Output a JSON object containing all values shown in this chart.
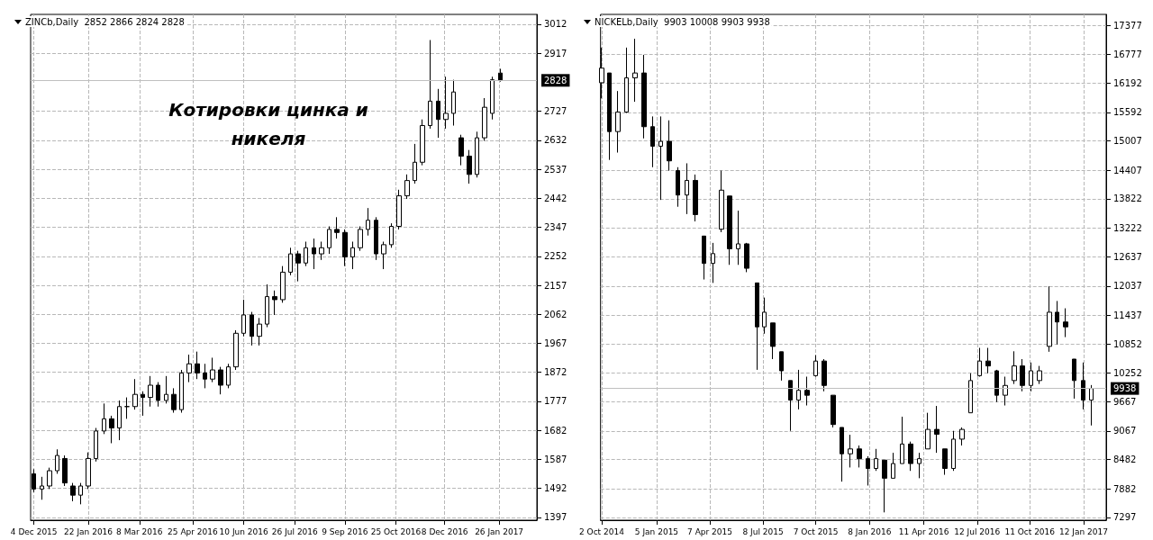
{
  "chart_data": [
    {
      "type": "candlestick",
      "title": "ZINCb,Daily  2852 2866 2824 2828",
      "annotations": [
        "Котировки цинка и никеля"
      ],
      "color": "#000000",
      "grid": true,
      "x": [
        "2015-12-04",
        "2015-12-11",
        "2015-12-18",
        "2015-12-25",
        "2016-01-01",
        "2016-01-08",
        "2016-01-15",
        "2016-01-22",
        "2016-01-29",
        "2016-02-05",
        "2016-02-12",
        "2016-02-19",
        "2016-02-26",
        "2016-03-04",
        "2016-03-11",
        "2016-03-18",
        "2016-03-25",
        "2016-04-01",
        "2016-04-08",
        "2016-04-15",
        "2016-04-22",
        "2016-04-29",
        "2016-05-06",
        "2016-05-13",
        "2016-05-20",
        "2016-05-27",
        "2016-06-03",
        "2016-06-10",
        "2016-06-17",
        "2016-06-24",
        "2016-07-01",
        "2016-07-08",
        "2016-07-15",
        "2016-07-22",
        "2016-07-29",
        "2016-08-05",
        "2016-08-12",
        "2016-08-19",
        "2016-08-26",
        "2016-09-02",
        "2016-09-09",
        "2016-09-16",
        "2016-09-23",
        "2016-09-30",
        "2016-10-07",
        "2016-10-14",
        "2016-10-21",
        "2016-10-28",
        "2016-11-04",
        "2016-11-11",
        "2016-11-18",
        "2016-11-25",
        "2016-12-02",
        "2016-12-09",
        "2016-12-16",
        "2016-12-23",
        "2016-12-30",
        "2017-01-06",
        "2017-01-13",
        "2017-01-20",
        "2017-01-27"
      ],
      "ohlc": [
        [
          1540,
          1555,
          1480,
          1490
        ],
        [
          1490,
          1530,
          1455,
          1500
        ],
        [
          1500,
          1560,
          1490,
          1550
        ],
        [
          1550,
          1620,
          1540,
          1600
        ],
        [
          1590,
          1600,
          1500,
          1510
        ],
        [
          1500,
          1510,
          1450,
          1470
        ],
        [
          1470,
          1510,
          1440,
          1500
        ],
        [
          1500,
          1610,
          1490,
          1590
        ],
        [
          1590,
          1690,
          1580,
          1680
        ],
        [
          1680,
          1770,
          1670,
          1720
        ],
        [
          1720,
          1730,
          1640,
          1690
        ],
        [
          1690,
          1780,
          1650,
          1760
        ],
        [
          1760,
          1790,
          1720,
          1760
        ],
        [
          1760,
          1850,
          1750,
          1800
        ],
        [
          1800,
          1810,
          1730,
          1790
        ],
        [
          1790,
          1860,
          1760,
          1830
        ],
        [
          1830,
          1840,
          1760,
          1780
        ],
        [
          1780,
          1860,
          1770,
          1800
        ],
        [
          1800,
          1820,
          1740,
          1750
        ],
        [
          1750,
          1880,
          1740,
          1870
        ],
        [
          1870,
          1930,
          1840,
          1900
        ],
        [
          1900,
          1940,
          1850,
          1870
        ],
        [
          1870,
          1900,
          1820,
          1850
        ],
        [
          1850,
          1920,
          1840,
          1880
        ],
        [
          1880,
          1890,
          1800,
          1830
        ],
        [
          1830,
          1900,
          1820,
          1890
        ],
        [
          1890,
          2010,
          1880,
          2000
        ],
        [
          2000,
          2110,
          1990,
          2060
        ],
        [
          2060,
          2070,
          1960,
          1990
        ],
        [
          1990,
          2050,
          1960,
          2030
        ],
        [
          2030,
          2160,
          2020,
          2120
        ],
        [
          2120,
          2140,
          2060,
          2110
        ],
        [
          2110,
          2220,
          2100,
          2200
        ],
        [
          2200,
          2280,
          2190,
          2260
        ],
        [
          2260,
          2270,
          2170,
          2230
        ],
        [
          2230,
          2300,
          2220,
          2280
        ],
        [
          2280,
          2310,
          2210,
          2260
        ],
        [
          2260,
          2300,
          2240,
          2280
        ],
        [
          2280,
          2350,
          2260,
          2340
        ],
        [
          2340,
          2380,
          2310,
          2330
        ],
        [
          2330,
          2340,
          2220,
          2250
        ],
        [
          2250,
          2300,
          2210,
          2280
        ],
        [
          2280,
          2350,
          2270,
          2340
        ],
        [
          2340,
          2410,
          2320,
          2370
        ],
        [
          2370,
          2380,
          2240,
          2260
        ],
        [
          2260,
          2300,
          2210,
          2290
        ],
        [
          2290,
          2360,
          2280,
          2350
        ],
        [
          2350,
          2470,
          2340,
          2450
        ],
        [
          2450,
          2520,
          2440,
          2500
        ],
        [
          2500,
          2620,
          2490,
          2560
        ],
        [
          2560,
          2700,
          2550,
          2680
        ],
        [
          2680,
          2960,
          2670,
          2760
        ],
        [
          2760,
          2800,
          2640,
          2700
        ],
        [
          2700,
          2840,
          2670,
          2720
        ],
        [
          2720,
          2830,
          2680,
          2790
        ],
        [
          2640,
          2650,
          2550,
          2580
        ],
        [
          2580,
          2600,
          2490,
          2520
        ],
        [
          2520,
          2660,
          2510,
          2640
        ],
        [
          2640,
          2770,
          2630,
          2740
        ],
        [
          2720,
          2840,
          2700,
          2830
        ],
        [
          2852,
          2866,
          2824,
          2828
        ]
      ],
      "xlim": [
        "2015-12-01",
        "2017-03-01"
      ],
      "xticks": [
        {
          "value": "2015-12-04",
          "label": "4 Dec 2015"
        },
        {
          "value": "2016-01-22",
          "label": "22 Jan 2016"
        },
        {
          "value": "2016-03-08",
          "label": "8 Mar 2016"
        },
        {
          "value": "2016-04-25",
          "label": "25 Apr 2016"
        },
        {
          "value": "2016-06-10",
          "label": "10 Jun 2016"
        },
        {
          "value": "2016-07-26",
          "label": "26 Jul 2016"
        },
        {
          "value": "2016-09-09",
          "label": "9 Sep 2016"
        },
        {
          "value": "2016-10-25",
          "label": "25 Oct 2016"
        },
        {
          "value": "2016-12-08",
          "label": "8 Dec 2016"
        },
        {
          "value": "2017-01-26",
          "label": "26 Jan 2017"
        }
      ],
      "ylim": [
        1388,
        3044
      ],
      "yticks": [
        1397,
        1492,
        1587,
        1682,
        1777,
        1872,
        1967,
        2062,
        2157,
        2252,
        2347,
        2442,
        2537,
        2632,
        2727,
        2917,
        3012
      ],
      "ref_lines": [
        {
          "axis": "y",
          "value": 2828,
          "label": "2828",
          "color": "#c0c0c0"
        }
      ]
    },
    {
      "type": "candlestick",
      "title": "NICKELb,Daily  9903 10008 9903 9938",
      "color": "#000000",
      "grid": true,
      "x": [
        "2014-10-02",
        "2014-10-15",
        "2014-10-30",
        "2014-11-14",
        "2014-11-29",
        "2014-12-14",
        "2014-12-29",
        "2015-01-12",
        "2015-01-27",
        "2015-02-11",
        "2015-02-26",
        "2015-03-13",
        "2015-03-28",
        "2015-04-12",
        "2015-04-27",
        "2015-05-11",
        "2015-05-26",
        "2015-06-10",
        "2015-06-28",
        "2015-07-10",
        "2015-07-25",
        "2015-08-09",
        "2015-08-24",
        "2015-09-07",
        "2015-09-22",
        "2015-10-07",
        "2015-10-22",
        "2015-11-06",
        "2015-11-21",
        "2015-12-06",
        "2015-12-21",
        "2016-01-05",
        "2016-01-19",
        "2016-02-03",
        "2016-02-18",
        "2016-03-04",
        "2016-03-19",
        "2016-04-03",
        "2016-04-18",
        "2016-05-03",
        "2016-05-17",
        "2016-06-01",
        "2016-06-16",
        "2016-07-01",
        "2016-07-16",
        "2016-07-31",
        "2016-08-15",
        "2016-08-30",
        "2016-09-14",
        "2016-09-28",
        "2016-10-13",
        "2016-10-28",
        "2016-11-14",
        "2016-11-27",
        "2016-12-12",
        "2016-12-27",
        "2017-01-11",
        "2017-01-25"
      ],
      "ohlc": [
        [
          16200,
          16920,
          15880,
          16500
        ],
        [
          16400,
          16400,
          14620,
          15200
        ],
        [
          15200,
          16030,
          14770,
          15600
        ],
        [
          15600,
          16920,
          15580,
          16300
        ],
        [
          16300,
          17100,
          15810,
          16400
        ],
        [
          16400,
          16770,
          15060,
          15300
        ],
        [
          15300,
          15510,
          14470,
          14900
        ],
        [
          14900,
          15510,
          13800,
          15000
        ],
        [
          15000,
          15430,
          14400,
          14600
        ],
        [
          14400,
          14470,
          13660,
          13900
        ],
        [
          13900,
          14550,
          13510,
          14200
        ],
        [
          14200,
          14320,
          13360,
          13500
        ],
        [
          13060,
          13060,
          12170,
          12500
        ],
        [
          12500,
          12920,
          12100,
          12700
        ],
        [
          13200,
          14400,
          13140,
          14000
        ],
        [
          13880,
          13880,
          12470,
          12800
        ],
        [
          12800,
          13580,
          12470,
          12900
        ],
        [
          12900,
          12920,
          12320,
          12400
        ],
        [
          12100,
          12100,
          10320,
          11200
        ],
        [
          11200,
          11800,
          11060,
          11500
        ],
        [
          11280,
          11280,
          10540,
          10800
        ],
        [
          10690,
          10690,
          10100,
          10300
        ],
        [
          10100,
          10100,
          9070,
          9700
        ],
        [
          9700,
          10320,
          9510,
          9900
        ],
        [
          9900,
          10180,
          9590,
          9800
        ],
        [
          10200,
          10620,
          10180,
          10500
        ],
        [
          10500,
          10540,
          9880,
          10000
        ],
        [
          9800,
          9800,
          9140,
          9200
        ],
        [
          9140,
          9140,
          8030,
          8600
        ],
        [
          8600,
          8990,
          8320,
          8700
        ],
        [
          8700,
          8770,
          8320,
          8500
        ],
        [
          8500,
          8550,
          7950,
          8300
        ],
        [
          8300,
          8700,
          8250,
          8500
        ],
        [
          8470,
          8470,
          7400,
          8100
        ],
        [
          8100,
          8620,
          8100,
          8400
        ],
        [
          8400,
          9360,
          8400,
          8800
        ],
        [
          8800,
          8850,
          8250,
          8400
        ],
        [
          8400,
          8620,
          8100,
          8500
        ],
        [
          8700,
          9440,
          8700,
          9100
        ],
        [
          9100,
          9580,
          8620,
          9000
        ],
        [
          8700,
          8700,
          8170,
          8300
        ],
        [
          8300,
          9070,
          8250,
          8900
        ],
        [
          8900,
          9140,
          8770,
          9100
        ],
        [
          9440,
          10250,
          9440,
          10100
        ],
        [
          10200,
          10770,
          10180,
          10500
        ],
        [
          10500,
          10770,
          10250,
          10400
        ],
        [
          10300,
          10320,
          9660,
          9800
        ],
        [
          9800,
          10180,
          9590,
          10000
        ],
        [
          10100,
          10700,
          10030,
          10400
        ],
        [
          10400,
          10540,
          9880,
          10000
        ],
        [
          10000,
          10470,
          9880,
          10300
        ],
        [
          10100,
          10400,
          10030,
          10300
        ],
        [
          10800,
          12030,
          10690,
          11500
        ],
        [
          11500,
          11730,
          10840,
          11300
        ],
        [
          11300,
          11580,
          10990,
          11200
        ],
        [
          10540,
          10540,
          9730,
          10100
        ],
        [
          10100,
          10470,
          9510,
          9700
        ],
        [
          9700,
          10008,
          9180,
          9938
        ]
      ],
      "xlim": [
        "2014-09-30",
        "2017-02-20"
      ],
      "xticks": [
        {
          "value": "2014-10-02",
          "label": "2 Oct 2014"
        },
        {
          "value": "2015-01-05",
          "label": "5 Jan 2015"
        },
        {
          "value": "2015-04-07",
          "label": "7 Apr 2015"
        },
        {
          "value": "2015-07-08",
          "label": "8 Jul 2015"
        },
        {
          "value": "2015-10-07",
          "label": "7 Oct 2015"
        },
        {
          "value": "2016-01-08",
          "label": "8 Jan 2016"
        },
        {
          "value": "2016-04-11",
          "label": "11 Apr 2016"
        },
        {
          "value": "2016-07-12",
          "label": "12 Jul 2016"
        },
        {
          "value": "2016-10-11",
          "label": "11 Oct 2016"
        },
        {
          "value": "2017-01-12",
          "label": "12 Jan 2017"
        }
      ],
      "ylim": [
        7240,
        17600
      ],
      "yticks": [
        7297,
        7882,
        8482,
        9067,
        9667,
        10252,
        10852,
        11437,
        12037,
        12637,
        13222,
        13822,
        14407,
        15007,
        15592,
        16192,
        16777,
        17377
      ],
      "ref_lines": [
        {
          "axis": "y",
          "value": 9938,
          "label": "9938",
          "color": "#c0c0c0"
        }
      ]
    }
  ]
}
